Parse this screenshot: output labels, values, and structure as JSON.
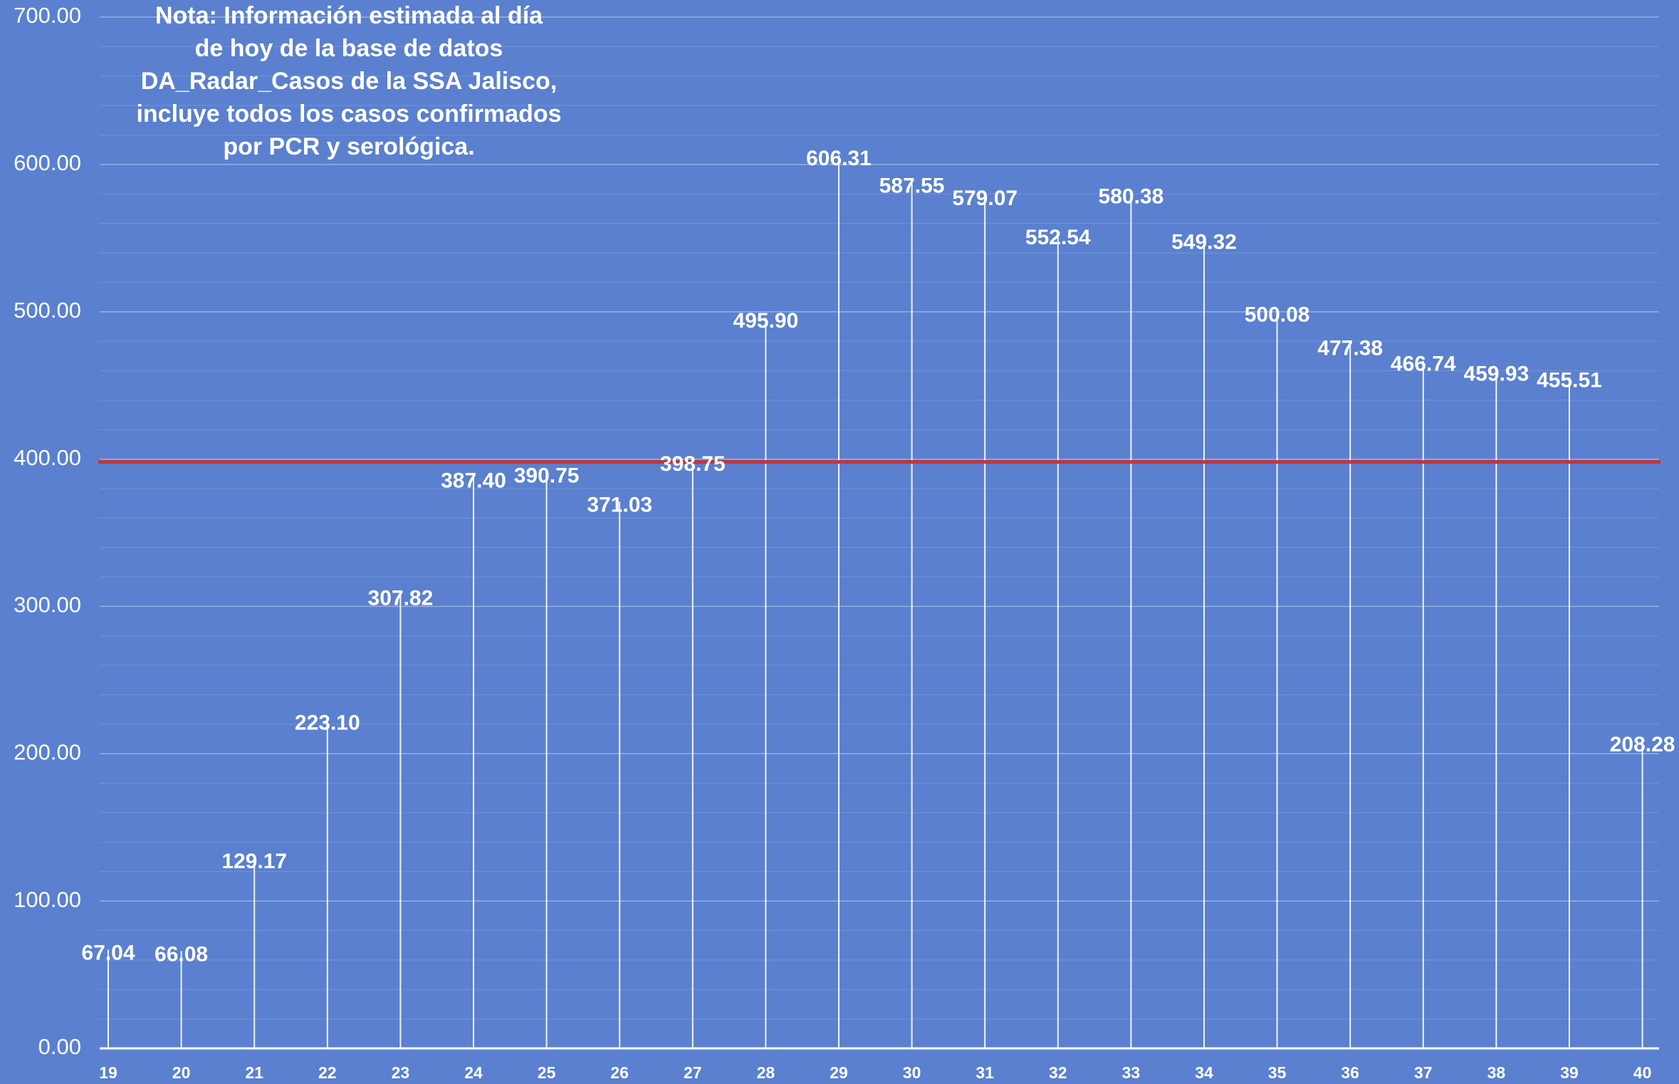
{
  "chart_data": {
    "type": "bar",
    "title": "",
    "xlabel": "",
    "ylabel": "",
    "ylim": [
      0,
      700
    ],
    "y_ticks": [
      "0.00",
      "100.00",
      "200.00",
      "300.00",
      "400.00",
      "500.00",
      "600.00",
      "700.00"
    ],
    "minor_grid_step": 20,
    "grid": true,
    "categories": [
      "19",
      "20",
      "21",
      "22",
      "23",
      "24",
      "25",
      "26",
      "27",
      "28",
      "29",
      "30",
      "31",
      "32",
      "33",
      "34",
      "35",
      "36",
      "37",
      "38",
      "39",
      "40"
    ],
    "values": [
      67.04,
      66.08,
      129.17,
      223.1,
      307.82,
      387.4,
      390.75,
      371.03,
      398.75,
      495.9,
      606.31,
      587.55,
      579.07,
      552.54,
      580.38,
      549.32,
      500.08,
      477.38,
      466.74,
      459.93,
      455.51,
      208.28
    ],
    "value_labels": [
      "67.04",
      "66.08",
      "129.17",
      "223.10",
      "307.82",
      "387.40",
      "390.75",
      "371.03",
      "398.75",
      "495.90",
      "606.31",
      "587.55",
      "579.07",
      "552.54",
      "580.38",
      "549.32",
      "500.08",
      "477.38",
      "466.74",
      "459.93",
      "455.51",
      "208.28"
    ],
    "reference_line": {
      "value": 400,
      "color": "#c0363c"
    },
    "note": [
      "Nota: Información estimada al día",
      "de hoy de la base de datos",
      "DA_Radar_Casos de la SSA Jalisco,",
      "incluye todos los casos confirmados",
      "por PCR y serológica."
    ],
    "colors": {
      "background": "#5a80cf",
      "stem": "#ffffff",
      "text": "#ffffff",
      "reference": "#c0363c"
    }
  }
}
